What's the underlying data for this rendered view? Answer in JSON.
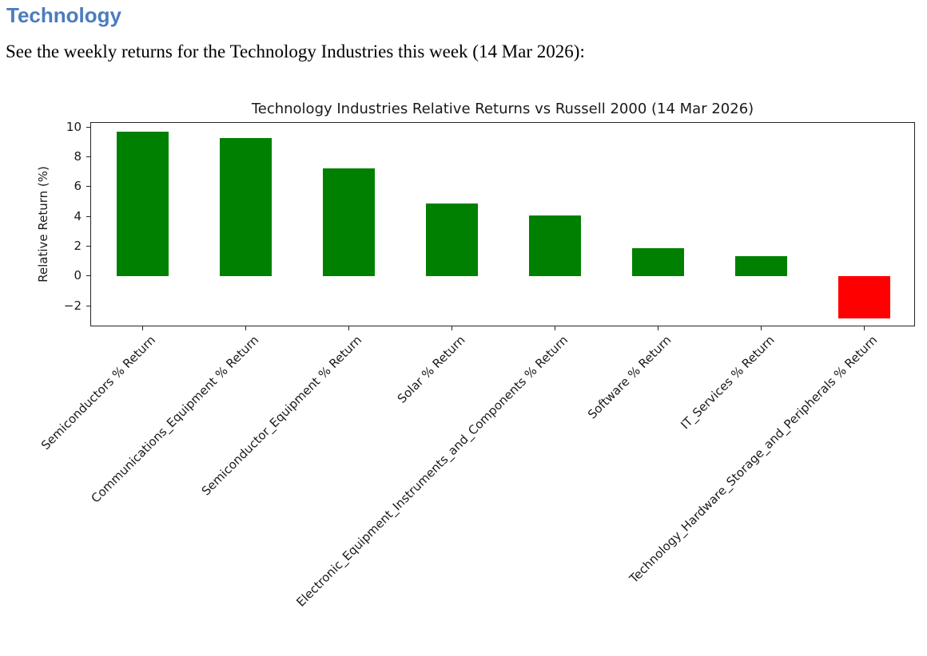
{
  "page": {
    "heading": "Technology",
    "intro": "See the weekly returns for the Technology Industries this week (14 Mar 2026):"
  },
  "colors": {
    "heading_blue": "#4b7cbe",
    "positive_bar": "#008000",
    "negative_bar": "#ff0000",
    "axis": "#262626"
  },
  "chart_data": {
    "type": "bar",
    "title": "Technology Industries Relative Returns vs Russell 2000 (14 Mar 2026)",
    "xlabel": "",
    "ylabel": "Relative Return (%)",
    "categories": [
      "Semiconductors % Return",
      "Communications_Equipment % Return",
      "Semiconductor_Equipment % Return",
      "Solar % Return",
      "Electronic_Equipment_Instruments_and_Components % Return",
      "Software % Return",
      "IT_Services % Return",
      "Technology_Hardware_Storage_and_Peripherals % Return"
    ],
    "values": [
      9.7,
      9.3,
      7.25,
      4.9,
      4.1,
      1.9,
      1.35,
      -2.8
    ],
    "bar_colors": [
      "#008000",
      "#008000",
      "#008000",
      "#008000",
      "#008000",
      "#008000",
      "#008000",
      "#ff0000"
    ],
    "ylim": [
      -3.4,
      10.3
    ],
    "yticks": [
      10,
      8,
      6,
      4,
      2,
      0,
      -2
    ],
    "grid": false,
    "legend": false,
    "x_tick_rotation_deg": 45,
    "bar_width_fraction": 0.5
  }
}
